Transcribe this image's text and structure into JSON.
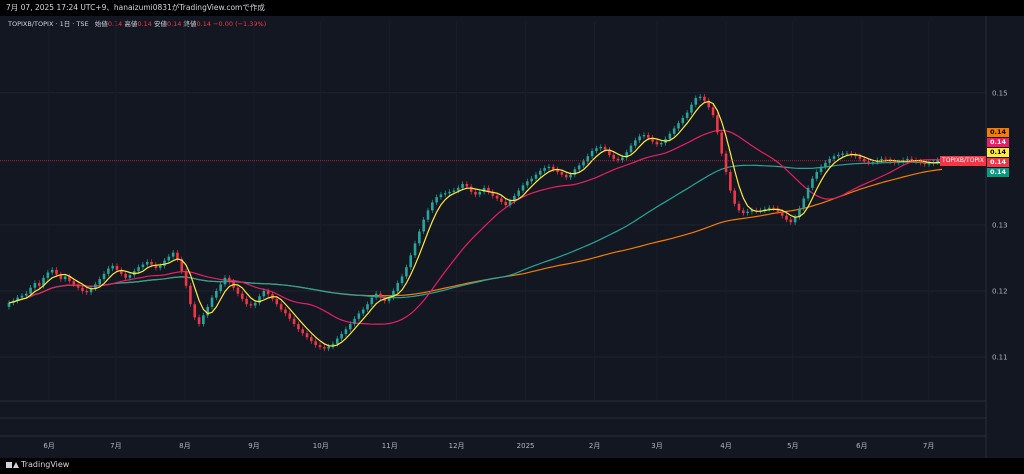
{
  "header": {
    "title": "7月 07, 2025 17:24 UTC+9、hanaizumi0831がTradingView.comで作成"
  },
  "legend": {
    "symbol": "TOPIXB/TOPIX · 1日 · TSE",
    "open_label": "始値",
    "open_value": "0.14",
    "high_label": "高値",
    "high_value": "0.14",
    "low_label": "安値",
    "low_value": "0.14",
    "close_label": "終値",
    "close_value": "0.14",
    "change": "−0.00 (−1.39%)"
  },
  "price_tags": [
    {
      "text": "0.14",
      "color": "#f57c00"
    },
    {
      "text": "0.14",
      "color": "#e91e63"
    },
    {
      "text": "0.14",
      "color": "#ffeb3b"
    },
    {
      "text": "0.14",
      "color": "#f23645"
    },
    {
      "text": "0.14",
      "color": "#089981"
    }
  ],
  "pair_label": "TOPIXB/TOPIX",
  "footer": {
    "brand": "TradingView"
  },
  "chart_data": {
    "type": "candlestick",
    "x_ticks": [
      "6月",
      "7月",
      "8月",
      "9月",
      "10月",
      "11月",
      "12月",
      "2025",
      "2月",
      "3月",
      "4月",
      "5月",
      "6月",
      "7月"
    ],
    "y_ticks": [
      0.11,
      0.12,
      0.13,
      0.15
    ],
    "ylim": [
      0.1035,
      0.1595
    ],
    "x_start": "2024-05-14",
    "x_end": "2025-07-07",
    "close": [
      0.1182,
      0.1185,
      0.119,
      0.1193,
      0.1196,
      0.1205,
      0.1212,
      0.1208,
      0.122,
      0.1228,
      0.1232,
      0.1225,
      0.1218,
      0.1222,
      0.1215,
      0.121,
      0.1205,
      0.12,
      0.1198,
      0.1204,
      0.121,
      0.1218,
      0.1226,
      0.1234,
      0.1238,
      0.1232,
      0.1226,
      0.122,
      0.1224,
      0.123,
      0.1236,
      0.124,
      0.1244,
      0.124,
      0.1235,
      0.1238,
      0.1246,
      0.1252,
      0.1258,
      0.1248,
      0.123,
      0.1208,
      0.118,
      0.116,
      0.115,
      0.1163,
      0.1176,
      0.119,
      0.12,
      0.121,
      0.122,
      0.1214,
      0.1205,
      0.1196,
      0.1188,
      0.118,
      0.1178,
      0.1182,
      0.1192,
      0.12,
      0.1195,
      0.1188,
      0.118,
      0.1172,
      0.1166,
      0.1158,
      0.115,
      0.1142,
      0.1136,
      0.113,
      0.1124,
      0.1118,
      0.1115,
      0.1113,
      0.1116,
      0.112,
      0.1128,
      0.1135,
      0.1142,
      0.115,
      0.1158,
      0.1166,
      0.1172,
      0.118,
      0.119,
      0.1196,
      0.119,
      0.1185,
      0.119,
      0.12,
      0.1212,
      0.1222,
      0.1236,
      0.1254,
      0.1272,
      0.129,
      0.1308,
      0.1322,
      0.1334,
      0.1342,
      0.1346,
      0.1348,
      0.135,
      0.1352,
      0.1356,
      0.1362,
      0.1358,
      0.135,
      0.1346,
      0.135,
      0.1356,
      0.135,
      0.1344,
      0.134,
      0.1335,
      0.133,
      0.1336,
      0.1344,
      0.1352,
      0.136,
      0.1366,
      0.137,
      0.1376,
      0.1382,
      0.1386,
      0.1388,
      0.1384,
      0.138,
      0.1376,
      0.1372,
      0.1376,
      0.1384,
      0.139,
      0.1396,
      0.1404,
      0.1412,
      0.1416,
      0.1418,
      0.1414,
      0.1406,
      0.14,
      0.1398,
      0.1402,
      0.141,
      0.142,
      0.1428,
      0.1434,
      0.1436,
      0.1432,
      0.1426,
      0.1422,
      0.1424,
      0.143,
      0.1438,
      0.1446,
      0.1454,
      0.1462,
      0.147,
      0.1482,
      0.1492,
      0.1494,
      0.1488,
      0.1478,
      0.1466,
      0.144,
      0.1408,
      0.138,
      0.1352,
      0.1332,
      0.1322,
      0.1318,
      0.132,
      0.1322,
      0.1321,
      0.1322,
      0.1324,
      0.1326,
      0.1325,
      0.132,
      0.1314,
      0.1308,
      0.1304,
      0.1312,
      0.1325,
      0.134,
      0.1356,
      0.137,
      0.138,
      0.1388,
      0.1394,
      0.14,
      0.1404,
      0.1406,
      0.1408,
      0.1408,
      0.1406,
      0.1404,
      0.14,
      0.1396,
      0.1394,
      0.1395,
      0.1398,
      0.14,
      0.1399,
      0.1396,
      0.1394,
      0.1395,
      0.1398,
      0.14,
      0.1398,
      0.1396,
      0.1394,
      0.1392,
      0.1393,
      0.1395,
      0.1398,
      0.1397
    ]
  }
}
